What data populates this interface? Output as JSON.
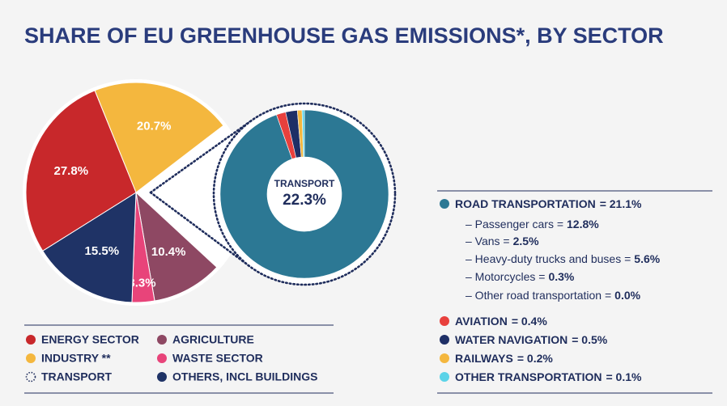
{
  "chart_data": [
    {
      "type": "pie",
      "title": "SHARE OF EU GREENHOUSE GAS EMISSIONS*, BY SECTOR",
      "categories": [
        "INDUSTRY **",
        "TRANSPORT",
        "AGRICULTURE",
        "WASTE SECTOR",
        "OTHERS, INCL BUILDINGS",
        "ENERGY SECTOR"
      ],
      "values": [
        20.7,
        22.3,
        10.4,
        3.3,
        15.5,
        27.8
      ],
      "value_labels": [
        "20.7%",
        "22.3%",
        "10.4%",
        "3.3%",
        "15.5%",
        "27.8%"
      ],
      "colors": [
        "#f4b73e",
        "#ffffff",
        "#8e4863",
        "#e8447a",
        "#1f3366",
        "#c8282b"
      ],
      "exploded": 1
    },
    {
      "type": "donut",
      "categories": [
        "ROAD TRANSPORTATION",
        "AVIATION",
        "WATER NAVIGATION",
        "RAILWAYS",
        "OTHER TRANSPORTATION"
      ],
      "values": [
        21.1,
        0.4,
        0.5,
        0.2,
        0.1
      ],
      "value_labels": [
        "= 21.1%",
        "= 0.4%",
        "= 0.5%",
        "= 0.2%",
        "= 0.1%"
      ],
      "colors": [
        "#2c7894",
        "#e8403d",
        "#1e2f66",
        "#f4b73e",
        "#5bd3e8"
      ],
      "breakdown": {
        "names": [
          "– Passenger cars =",
          "– Vans =",
          "– Heavy-duty trucks and buses =",
          "– Motorcycles =",
          "– Other road transportation ="
        ],
        "values": [
          12.8,
          2.5,
          5.6,
          0.3,
          0.0
        ],
        "value_labels": [
          "12.8%",
          "2.5%",
          "5.6%",
          "0.3%",
          "0.0%"
        ]
      }
    }
  ]
}
